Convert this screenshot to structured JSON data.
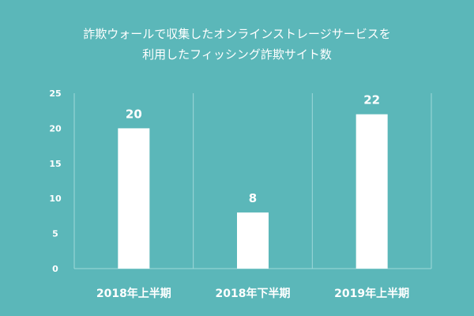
{
  "page": {
    "background": "#5bb7b9",
    "title_line1": "詐欺ウォールで収集したオンラインストレージサービスを",
    "title_line2": "利用したフィッシング詐欺サイト数"
  },
  "chart_data": {
    "type": "bar",
    "title": "詐欺ウォールで収集したオンラインストレージサービスを利用したフィッシング詐欺サイト数",
    "categories": [
      "2018年上半期",
      "2018年下半期",
      "2019年上半期"
    ],
    "values": [
      20,
      8,
      22
    ],
    "ylim": [
      0,
      25
    ],
    "yticks": [
      0,
      5,
      10,
      15,
      20,
      25
    ],
    "ytick_labels": [
      "0",
      "5",
      "10",
      "15",
      "20",
      "25"
    ],
    "data_labels": [
      "20",
      "8",
      "22"
    ],
    "grid": false,
    "category_separators": true,
    "legend": "none",
    "bar_color": "#ffffff",
    "line_color": "#9fd8d9",
    "text_color": "#ffffff"
  }
}
